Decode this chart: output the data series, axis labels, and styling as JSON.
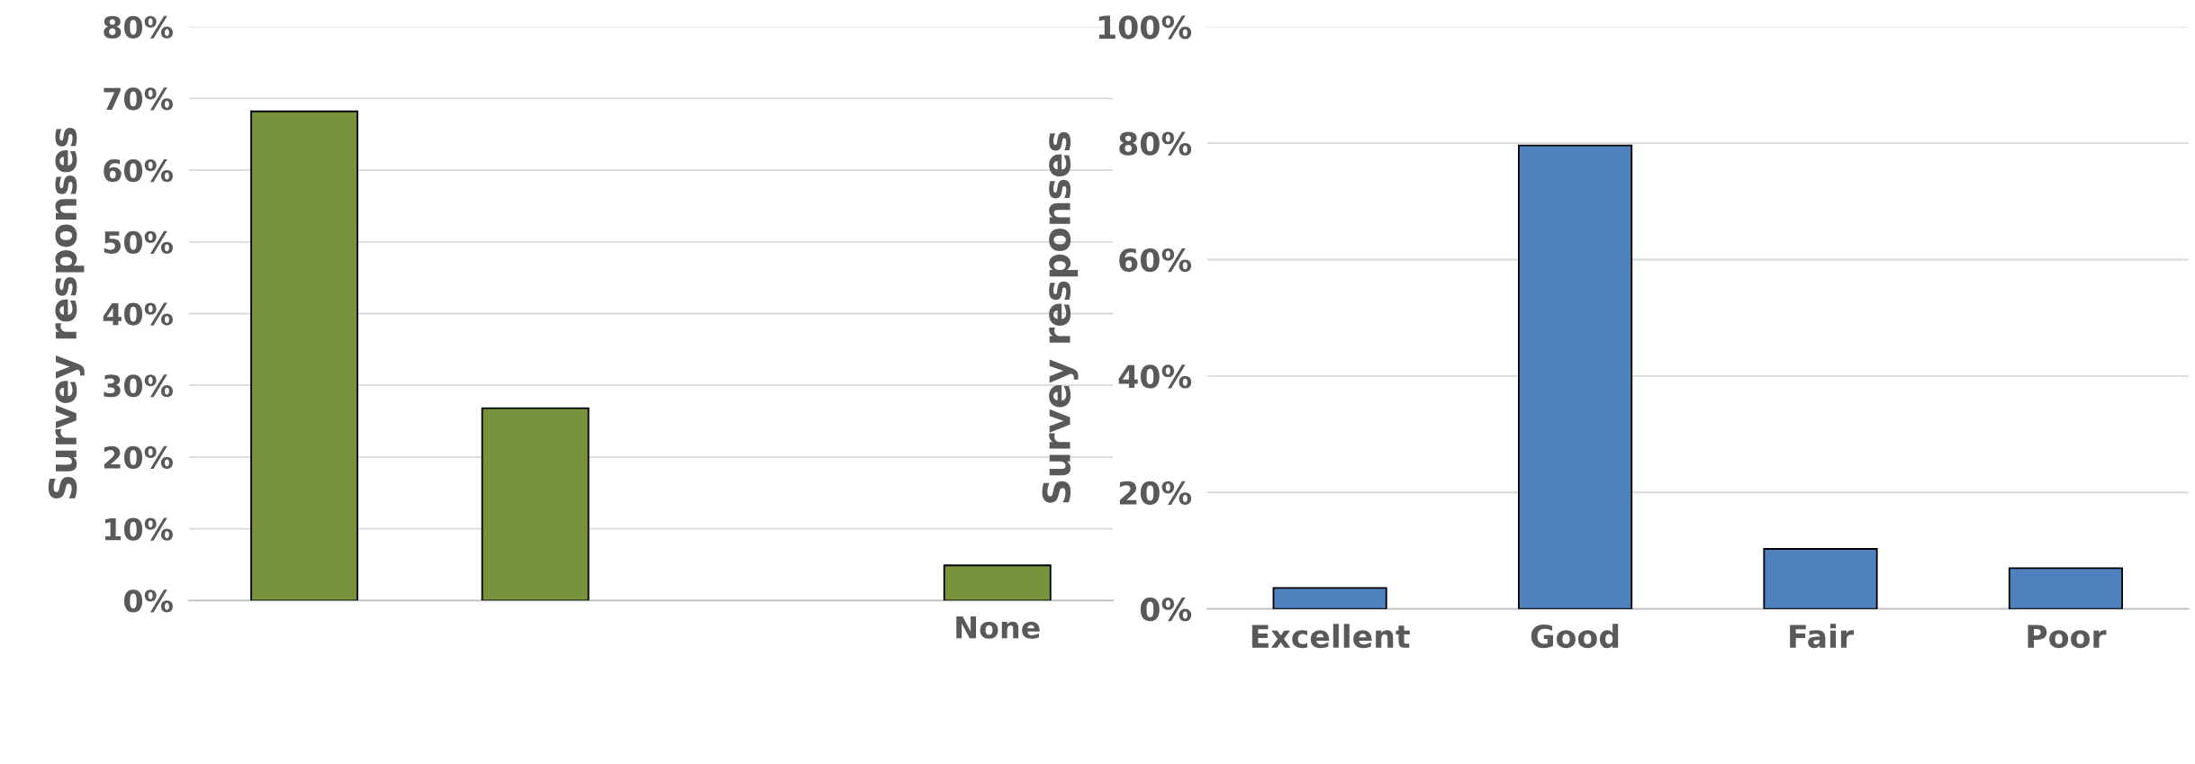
{
  "chart_data": [
    {
      "type": "bar",
      "ylabel": "Survey responses",
      "categories": [
        null,
        null,
        null,
        "None"
      ],
      "series": [
        {
          "color": "#77933c",
          "values": [
            68.2,
            26.8,
            0,
            4.9
          ]
        }
      ],
      "ylim": [
        0,
        80
      ],
      "yticks": [
        {
          "value": 0,
          "label": "0%"
        },
        {
          "value": 10,
          "label": "10%"
        },
        {
          "value": 20,
          "label": "20%"
        },
        {
          "value": 30,
          "label": "30%"
        },
        {
          "value": 40,
          "label": "40%"
        },
        {
          "value": 50,
          "label": "50%"
        },
        {
          "value": 60,
          "label": "60%"
        },
        {
          "value": 70,
          "label": "70%"
        },
        {
          "value": 80,
          "label": "80%"
        }
      ],
      "grid": "y"
    },
    {
      "type": "bar",
      "ylabel": "Survey responses",
      "categories": [
        "Excellent",
        "Good",
        "Fair",
        "Poor"
      ],
      "series": [
        {
          "color": "#4f81bd",
          "values": [
            3.6,
            79.6,
            10.3,
            7.0
          ]
        }
      ],
      "ylim": [
        0,
        100
      ],
      "yticks": [
        {
          "value": 0,
          "label": "0%"
        },
        {
          "value": 20,
          "label": "20%"
        },
        {
          "value": 40,
          "label": "40%"
        },
        {
          "value": 60,
          "label": "60%"
        },
        {
          "value": 80,
          "label": "80%"
        },
        {
          "value": 100,
          "label": "100%"
        }
      ],
      "grid": "y"
    }
  ]
}
